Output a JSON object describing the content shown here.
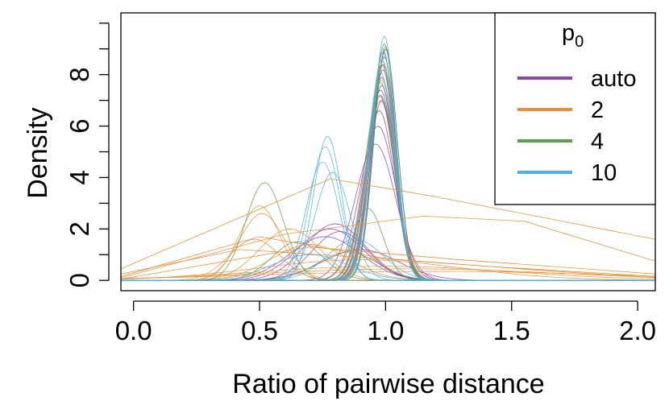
{
  "chart_data": {
    "type": "line",
    "title": "",
    "xlabel": "Ratio of pairwise distance",
    "ylabel": "Density",
    "xlim": [
      -0.05,
      2.07
    ],
    "ylim": [
      -0.4,
      10.4
    ],
    "x_ticks": [
      0.0,
      0.5,
      1.0,
      1.5,
      2.0
    ],
    "x_tick_labels": [
      "0.0",
      "0.5",
      "1.0",
      "1.5",
      "2.0"
    ],
    "y_ticks": [
      0,
      2,
      4,
      6,
      8
    ],
    "y_tick_labels": [
      "0",
      "2",
      "4",
      "6",
      "8"
    ],
    "y_minor_ticks": [
      1,
      3,
      5,
      7,
      9,
      10
    ],
    "legend": {
      "title_main": "p",
      "title_sub": "0",
      "position": "top-right",
      "entries": [
        {
          "label": "auto",
          "color": "#8E44AD"
        },
        {
          "label": "2",
          "color": "#E8913A"
        },
        {
          "label": "4",
          "color": "#5C9E4F"
        },
        {
          "label": "10",
          "color": "#4DB3E6"
        }
      ]
    },
    "series": [
      {
        "group": "auto",
        "color": "#8E44AD",
        "curves": [
          {
            "mu": 0.985,
            "sd": 0.05,
            "peak": 7.6
          },
          {
            "mu": 0.99,
            "sd": 0.048,
            "peak": 8.2
          },
          {
            "mu": 0.98,
            "sd": 0.055,
            "peak": 7.2
          },
          {
            "mu": 0.995,
            "sd": 0.046,
            "peak": 8.7
          },
          {
            "mu": 0.975,
            "sd": 0.06,
            "peak": 6.6
          },
          {
            "mu": 0.985,
            "sd": 0.052,
            "peak": 7.9
          },
          {
            "mu": 0.99,
            "sd": 0.05,
            "peak": 8.4
          },
          {
            "mu": 0.97,
            "sd": 0.07,
            "peak": 6.0
          },
          {
            "mu": 0.98,
            "sd": 0.056,
            "peak": 7.4
          },
          {
            "mu": 1.0,
            "sd": 0.047,
            "peak": 9.0
          },
          {
            "mu": 0.96,
            "sd": 0.08,
            "peak": 5.3
          },
          {
            "mu": 0.985,
            "sd": 0.053,
            "peak": 7.0
          },
          {
            "mu": 0.8,
            "sd": 0.12,
            "peak": 2.2
          },
          {
            "mu": 0.78,
            "sd": 0.13,
            "peak": 2.0
          },
          {
            "mu": 0.82,
            "sd": 0.11,
            "peak": 1.9
          },
          {
            "mu": 0.76,
            "sd": 0.14,
            "peak": 1.7
          },
          {
            "mu": 0.9,
            "sd": 0.15,
            "peak": 1.2
          }
        ]
      },
      {
        "group": "2",
        "color": "#E8913A",
        "curves": [
          {
            "mu": 0.99,
            "sd": 0.05,
            "peak": 8.5
          },
          {
            "mu": 0.985,
            "sd": 0.055,
            "peak": 7.8
          },
          {
            "mu": 0.98,
            "sd": 0.06,
            "peak": 7.0
          },
          {
            "mu": 0.5,
            "sd": 0.08,
            "peak": 2.9
          },
          {
            "mu": 0.51,
            "sd": 0.09,
            "peak": 2.6
          },
          {
            "mu": 0.48,
            "sd": 0.1,
            "peak": 1.6
          },
          {
            "mu": 0.62,
            "sd": 0.12,
            "peak": 2.0
          },
          {
            "mu": 0.7,
            "sd": 0.15,
            "peak": 1.4
          },
          {
            "mu": 0.9,
            "sd": 0.4,
            "peak": 0.8
          },
          {
            "mu": 1.0,
            "sd": 0.5,
            "peak": 0.55
          },
          {
            "mu": 1.1,
            "sd": 0.6,
            "peak": 0.45
          },
          {
            "mu": 1.2,
            "sd": 0.7,
            "peak": 0.35
          }
        ]
      },
      {
        "group": "4",
        "color": "#5C9E4F",
        "curves": [
          {
            "mu": 0.995,
            "sd": 0.045,
            "peak": 9.2
          },
          {
            "mu": 0.99,
            "sd": 0.048,
            "peak": 8.9
          },
          {
            "mu": 0.985,
            "sd": 0.05,
            "peak": 8.4
          },
          {
            "mu": 0.98,
            "sd": 0.055,
            "peak": 7.7
          },
          {
            "mu": 1.0,
            "sd": 0.046,
            "peak": 9.1
          },
          {
            "mu": 0.975,
            "sd": 0.06,
            "peak": 7.2
          },
          {
            "mu": 0.52,
            "sd": 0.075,
            "peak": 3.8
          },
          {
            "mu": 0.93,
            "sd": 0.06,
            "peak": 2.8
          },
          {
            "mu": 0.65,
            "sd": 0.1,
            "peak": 1.5
          },
          {
            "mu": 0.85,
            "sd": 0.12,
            "peak": 1.1
          }
        ]
      },
      {
        "group": "10",
        "color": "#4DB3E6",
        "curves": [
          {
            "mu": 0.995,
            "sd": 0.045,
            "peak": 9.5
          },
          {
            "mu": 0.99,
            "sd": 0.047,
            "peak": 9.0
          },
          {
            "mu": 0.985,
            "sd": 0.05,
            "peak": 8.6
          },
          {
            "mu": 0.98,
            "sd": 0.053,
            "peak": 8.1
          },
          {
            "mu": 0.77,
            "sd": 0.055,
            "peak": 5.6
          },
          {
            "mu": 0.76,
            "sd": 0.06,
            "peak": 5.2
          },
          {
            "mu": 0.75,
            "sd": 0.065,
            "peak": 4.6
          },
          {
            "mu": 0.79,
            "sd": 0.07,
            "peak": 4.2
          },
          {
            "mu": 0.88,
            "sd": 0.11,
            "peak": 1.6
          },
          {
            "mu": 0.7,
            "sd": 0.15,
            "peak": 1.0
          }
        ]
      }
    ],
    "orange_outliers": [
      {
        "points": [
          [
            -0.05,
            0.45
          ],
          [
            0.78,
            3.95
          ],
          [
            1.2,
            3.25
          ],
          [
            2.07,
            1.6
          ]
        ]
      },
      {
        "points": [
          [
            -0.05,
            0.1
          ],
          [
            0.6,
            1.8
          ],
          [
            1.15,
            2.5
          ],
          [
            1.55,
            2.3
          ],
          [
            2.07,
            0.75
          ]
        ]
      },
      {
        "points": [
          [
            -0.05,
            0.05
          ],
          [
            0.7,
            1.3
          ],
          [
            1.3,
            0.8
          ],
          [
            2.07,
            0.25
          ]
        ]
      },
      {
        "points": [
          [
            -0.05,
            0.25
          ],
          [
            0.42,
            1.2
          ],
          [
            0.9,
            0.9
          ],
          [
            1.4,
            0.55
          ],
          [
            2.07,
            0.15
          ]
        ]
      },
      {
        "points": [
          [
            -0.05,
            0.15
          ],
          [
            0.5,
            1.7
          ],
          [
            1.0,
            0.85
          ],
          [
            1.6,
            0.4
          ],
          [
            2.07,
            0.1
          ]
        ]
      }
    ]
  }
}
